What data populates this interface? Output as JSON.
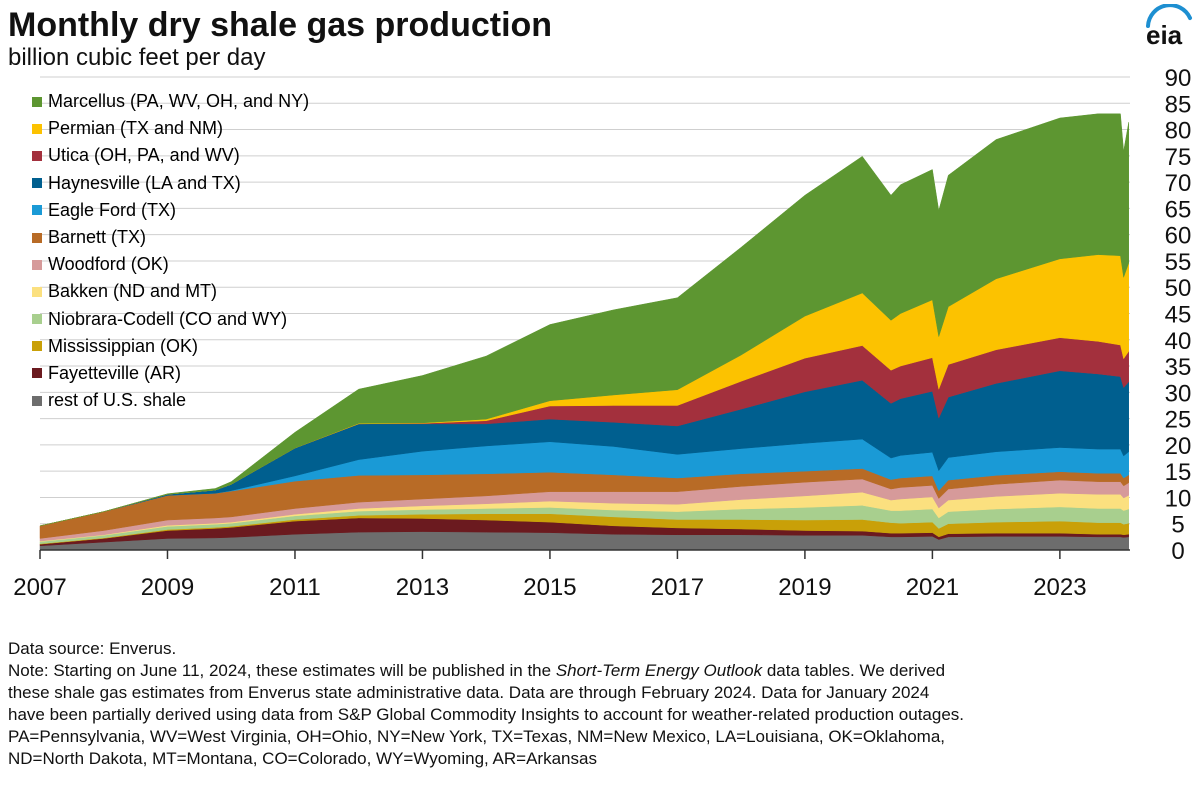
{
  "header": {
    "title": "Monthly dry shale gas production",
    "subtitle": "billion cubic feet per day",
    "logo_text": "eia"
  },
  "notes": {
    "source": "Data source: Enverus.",
    "note_prefix": "Note: Starting on June 11, 2024, these estimates will be published in the ",
    "note_italic": "Short-Term Energy Outlook",
    "note_suffix": " data tables. We derived",
    "line2": "these shale gas estimates from Enverus state administrative data. Data are through February 2024. Data for January 2024",
    "line3": "have been partially derived using data from S&P Global Commodity Insights to account for weather-related production outages.",
    "line4": "PA=Pennsylvania, WV=West Virginia, OH=Ohio, NY=New York, TX=Texas, NM=New Mexico, LA=Louisiana, OK=Oklahoma,",
    "line5": "ND=North Dakota, MT=Montana, CO=Colorado, WY=Wyoming, AR=Arkansas"
  },
  "chart_data": {
    "type": "area",
    "stacked": true,
    "title": "Monthly dry shale gas production",
    "ylabel": "billion cubic feet per day",
    "xlabel": "",
    "ylim": [
      0,
      90
    ],
    "y_ticks": [
      0,
      5,
      10,
      15,
      20,
      25,
      30,
      35,
      40,
      45,
      50,
      55,
      60,
      65,
      70,
      75,
      80,
      85,
      90
    ],
    "x_ticks": [
      "2007",
      "2009",
      "2011",
      "2013",
      "2015",
      "2017",
      "2019",
      "2021",
      "2023"
    ],
    "x": [
      2007.0,
      2008.0,
      2009.0,
      2009.75,
      2010.0,
      2011.0,
      2012.0,
      2013.0,
      2014.0,
      2015.0,
      2016.0,
      2017.0,
      2018.0,
      2019.0,
      2019.9,
      2020.35,
      2020.5,
      2021.0,
      2021.1,
      2021.25,
      2022.0,
      2023.0,
      2023.6,
      2023.95,
      2024.0,
      2024.08
    ],
    "legend_position": "top-left",
    "series": [
      {
        "name": "rest of U.S. shale",
        "color": "#6d6d6d",
        "values": [
          0.8,
          1.5,
          2.2,
          2.3,
          2.4,
          3.0,
          3.4,
          3.5,
          3.4,
          3.3,
          3.0,
          2.9,
          2.9,
          2.8,
          2.8,
          2.5,
          2.5,
          2.6,
          2.0,
          2.5,
          2.6,
          2.6,
          2.5,
          2.5,
          2.4,
          2.5
        ]
      },
      {
        "name": "Fayetteville (AR)",
        "color": "#6b1a1f",
        "values": [
          0.3,
          0.7,
          1.5,
          1.8,
          1.9,
          2.5,
          2.7,
          2.5,
          2.3,
          2.0,
          1.6,
          1.3,
          1.1,
          0.9,
          0.8,
          0.7,
          0.7,
          0.7,
          0.5,
          0.6,
          0.6,
          0.6,
          0.5,
          0.5,
          0.5,
          0.5
        ]
      },
      {
        "name": "Mississippian (OK)",
        "color": "#c9a008",
        "values": [
          0.1,
          0.1,
          0.2,
          0.2,
          0.2,
          0.3,
          0.5,
          0.8,
          1.2,
          1.6,
          1.7,
          1.6,
          1.8,
          2.0,
          2.2,
          2.0,
          1.9,
          2.0,
          1.6,
          1.9,
          2.1,
          2.3,
          2.2,
          2.2,
          2.0,
          2.1
        ]
      },
      {
        "name": "Niobrara-Codell (CO and WY)",
        "color": "#a8cf8e",
        "values": [
          0.4,
          0.5,
          0.6,
          0.6,
          0.6,
          0.7,
          0.8,
          0.9,
          1.0,
          1.2,
          1.3,
          1.5,
          2.0,
          2.4,
          2.7,
          2.3,
          2.4,
          2.5,
          2.0,
          2.3,
          2.5,
          2.7,
          2.7,
          2.7,
          2.6,
          2.7
        ]
      },
      {
        "name": "Bakken (ND and MT)",
        "color": "#fbe07f",
        "values": [
          0.1,
          0.1,
          0.2,
          0.2,
          0.2,
          0.3,
          0.5,
          0.7,
          0.9,
          1.2,
          1.3,
          1.4,
          1.8,
          2.2,
          2.5,
          2.0,
          2.2,
          2.3,
          1.9,
          2.2,
          2.4,
          2.6,
          2.7,
          2.7,
          2.4,
          2.6
        ]
      },
      {
        "name": "Woodford (OK)",
        "color": "#d69a9a",
        "values": [
          0.5,
          0.8,
          1.0,
          1.0,
          1.0,
          1.1,
          1.2,
          1.3,
          1.5,
          1.8,
          2.2,
          2.4,
          2.5,
          2.6,
          2.5,
          2.1,
          2.2,
          2.2,
          1.8,
          2.1,
          2.3,
          2.5,
          2.4,
          2.4,
          2.3,
          2.4
        ]
      },
      {
        "name": "Barnett (TX)",
        "color": "#b86b26",
        "values": [
          2.4,
          3.6,
          4.7,
          4.7,
          4.9,
          5.2,
          5.1,
          4.6,
          4.2,
          3.7,
          3.2,
          2.6,
          2.4,
          2.1,
          2.0,
          1.8,
          1.8,
          1.8,
          1.5,
          1.7,
          1.7,
          1.6,
          1.6,
          1.6,
          1.5,
          1.5
        ]
      },
      {
        "name": "Eagle Ford (TX)",
        "color": "#1a9ad6",
        "values": [
          0.0,
          0.0,
          0.0,
          0.0,
          0.1,
          1.0,
          3.0,
          4.5,
          5.3,
          5.8,
          5.4,
          4.5,
          4.8,
          5.3,
          5.6,
          4.1,
          4.3,
          4.5,
          3.8,
          4.3,
          4.5,
          4.6,
          4.6,
          4.6,
          4.2,
          4.4
        ]
      },
      {
        "name": "Haynesville (LA and TX)",
        "color": "#005f8f",
        "values": [
          0.0,
          0.0,
          0.2,
          0.6,
          1.2,
          5.3,
          6.8,
          5.2,
          4.2,
          4.3,
          4.6,
          5.4,
          7.5,
          9.8,
          11.2,
          10.4,
          10.8,
          11.6,
          10.0,
          11.5,
          13.0,
          14.6,
          14.3,
          13.8,
          13.0,
          13.3
        ]
      },
      {
        "name": "Utica (OH, PA, and WV)",
        "color": "#a3303d",
        "values": [
          0.0,
          0.0,
          0.0,
          0.0,
          0.0,
          0.0,
          0.0,
          0.1,
          0.6,
          2.5,
          3.2,
          3.9,
          5.3,
          6.4,
          6.6,
          6.3,
          6.2,
          6.4,
          5.5,
          6.2,
          6.4,
          6.3,
          6.2,
          6.0,
          5.5,
          5.8
        ]
      },
      {
        "name": "Permian (TX and NM)",
        "color": "#fcc200",
        "values": [
          0.0,
          0.0,
          0.0,
          0.0,
          0.0,
          0.0,
          0.1,
          0.1,
          0.3,
          1.0,
          2.0,
          3.0,
          5.0,
          8.0,
          10.0,
          9.5,
          10.0,
          11.0,
          10.0,
          11.0,
          13.5,
          15.0,
          16.5,
          17.0,
          15.5,
          16.8
        ]
      },
      {
        "name": "Marcellus (PA, WV, OH, and NY)",
        "color": "#5d9631",
        "values": [
          0.0,
          0.0,
          0.1,
          0.3,
          0.5,
          3.0,
          6.5,
          9.0,
          12.0,
          14.5,
          16.2,
          17.5,
          20.5,
          23.0,
          26.0,
          23.8,
          24.5,
          24.8,
          24.0,
          25.0,
          26.5,
          26.8,
          26.8,
          27.0,
          24.0,
          26.8
        ]
      }
    ]
  }
}
